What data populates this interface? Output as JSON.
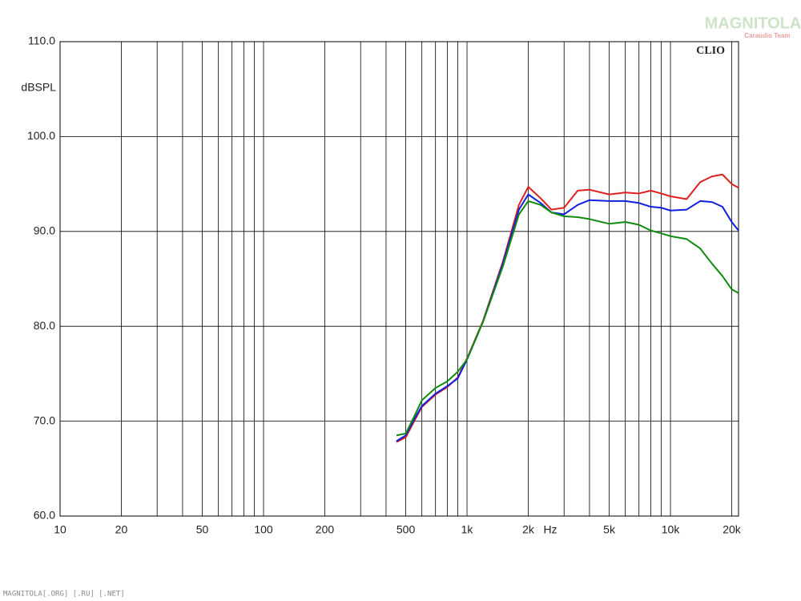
{
  "chart_data": {
    "type": "line",
    "xlog": true,
    "grid": true,
    "ylabel": "dBSPL",
    "xlabel": "Hz",
    "annotation": "CLIO",
    "watermark": "MAGNITOLA",
    "watermark_sub": "Caraudio Team",
    "footer": "MAGNITOLA[.ORG] [.RU] [.NET]",
    "xlim": [
      10,
      21600
    ],
    "ylim": [
      60,
      110
    ],
    "xticks": [
      10,
      20,
      50,
      100,
      200,
      500,
      {
        "value": 1000,
        "label": "1k"
      },
      {
        "value": 2000,
        "label": "2k"
      },
      {
        "value": 5000,
        "label": "5k"
      },
      {
        "value": 10000,
        "label": "10k"
      },
      {
        "value": 20000,
        "label": "20k"
      }
    ],
    "xminorticks": [
      30,
      40,
      60,
      70,
      80,
      90,
      300,
      400,
      600,
      700,
      800,
      900,
      3000,
      4000,
      6000,
      7000,
      8000,
      9000
    ],
    "yticks": [
      {
        "value": 60,
        "label": "60.0"
      },
      {
        "value": 70,
        "label": "70.0"
      },
      {
        "value": 80,
        "label": "80.0"
      },
      {
        "value": 90,
        "label": "90.0"
      },
      {
        "value": 100,
        "label": "100.0"
      },
      {
        "value": 110,
        "label": "110.0"
      }
    ],
    "x": [
      450,
      500,
      550,
      600,
      700,
      800,
      900,
      1000,
      1200,
      1500,
      1800,
      2000,
      2300,
      2600,
      3000,
      3500,
      4000,
      5000,
      6000,
      7000,
      8000,
      9000,
      10000,
      12000,
      14000,
      16000,
      18000,
      20000,
      21600
    ],
    "series": [
      {
        "color": "#e02020",
        "values": [
          67.8,
          68.3,
          70.0,
          71.5,
          72.8,
          73.6,
          74.6,
          76.6,
          80.6,
          86.8,
          92.8,
          94.7,
          93.5,
          92.3,
          92.5,
          94.3,
          94.4,
          93.9,
          94.1,
          94.0,
          94.3,
          94.0,
          93.7,
          93.4,
          95.2,
          95.8,
          96.0,
          95.0,
          94.6
        ]
      },
      {
        "color": "#1020e0",
        "values": [
          67.9,
          68.5,
          70.2,
          71.6,
          72.9,
          73.7,
          74.5,
          76.5,
          80.5,
          86.6,
          92.3,
          93.9,
          93.0,
          92.0,
          91.8,
          92.8,
          93.3,
          93.2,
          93.2,
          93.0,
          92.6,
          92.5,
          92.2,
          92.3,
          93.2,
          93.1,
          92.6,
          91.0,
          90.1
        ]
      },
      {
        "color": "#108a10",
        "values": [
          68.5,
          68.7,
          70.5,
          72.2,
          73.5,
          74.2,
          75.2,
          76.5,
          80.5,
          86.3,
          91.8,
          93.2,
          92.8,
          92.0,
          91.6,
          91.5,
          91.3,
          90.8,
          91.0,
          90.7,
          90.1,
          89.8,
          89.5,
          89.2,
          88.2,
          86.6,
          85.3,
          83.9,
          83.5
        ]
      }
    ]
  }
}
